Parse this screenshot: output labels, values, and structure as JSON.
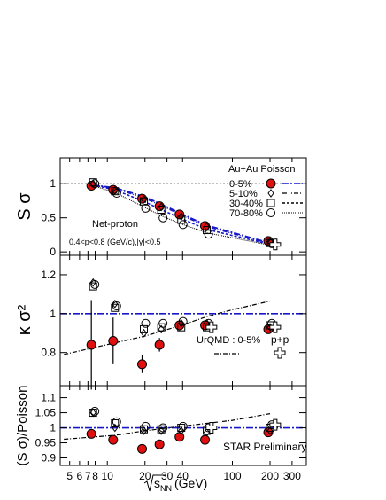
{
  "chart_data": {
    "type": "scatter",
    "x_scale": "log",
    "xlabel_root": "s",
    "xlabel_sub": "NN",
    "xlabel_unit": "(GeV)",
    "xlim": [
      4.2,
      390
    ],
    "x_ticks": [
      5,
      6,
      7,
      8,
      10,
      20,
      30,
      40,
      100,
      200,
      300
    ],
    "panels": [
      {
        "id": "s-sigma",
        "ylabel": "S σ",
        "ylim": [
          -0.05,
          1.38
        ],
        "y_ticks": [
          0,
          0.5,
          1
        ],
        "reference_line": 1,
        "legend_title": "Au+Au Poisson",
        "legend_entries": [
          "0-5%",
          "5-10%",
          "30-40%",
          "70-80%"
        ],
        "annotations": [
          "Net-proton",
          "0.4<p<0.8 (GeV/c),|y|<0.5"
        ],
        "poisson_curves": [
          {
            "name": "0-5%",
            "x": [
              7.7,
              11.5,
              19.6,
              27,
              39,
              62.4,
              200
            ],
            "y": [
              0.98,
              0.94,
              0.81,
              0.7,
              0.56,
              0.39,
              0.13
            ]
          },
          {
            "name": "5-10%",
            "x": [
              7.7,
              11.5,
              19.6,
              27,
              39,
              62.4,
              200
            ],
            "y": [
              0.98,
              0.93,
              0.79,
              0.68,
              0.54,
              0.37,
              0.12
            ]
          },
          {
            "name": "30-40%",
            "x": [
              7.7,
              11.5,
              19.6,
              27,
              39,
              62.4,
              200
            ],
            "y": [
              0.98,
              0.91,
              0.74,
              0.62,
              0.49,
              0.33,
              0.11
            ]
          },
          {
            "name": "70-80%",
            "x": [
              7.7,
              11.5,
              19.6,
              27,
              39,
              62.4,
              200
            ],
            "y": [
              0.97,
              0.87,
              0.66,
              0.53,
              0.41,
              0.28,
              0.1
            ]
          }
        ],
        "series": [
          {
            "name": "0-5%",
            "x": [
              7.7,
              11.5,
              19.6,
              27,
              39,
              62.4,
              200
            ],
            "y": [
              0.97,
              0.91,
              0.78,
              0.67,
              0.55,
              0.38,
              0.16
            ]
          },
          {
            "name": "5-10%",
            "x": [
              7.7,
              11.5,
              19.6,
              27,
              39,
              62.4,
              200
            ],
            "y": [
              1.0,
              0.9,
              0.77,
              0.66,
              0.52,
              0.37,
              0.15
            ]
          },
          {
            "name": "30-40%",
            "x": [
              7.7,
              11.5,
              19.6,
              27,
              39,
              62.4,
              200
            ],
            "y": [
              1.02,
              0.89,
              0.74,
              0.62,
              0.47,
              0.32,
              0.13
            ]
          },
          {
            "name": "70-80%",
            "x": [
              7.7,
              11.5,
              19.6,
              27,
              39,
              62.4,
              200
            ],
            "y": [
              1.0,
              0.86,
              0.64,
              0.5,
              0.4,
              0.26,
              0.12
            ]
          }
        ],
        "pp": {
          "name": "p+p",
          "x": [
            220
          ],
          "y": [
            0.11
          ]
        }
      },
      {
        "id": "kappa-sigma2",
        "ylabel": "κ σ²",
        "ylim": [
          0.63,
          1.3
        ],
        "y_ticks": [
          0.8,
          1,
          1.2
        ],
        "reference_line": 1,
        "annotations": [
          "UrQMD : 0-5%",
          "p+p"
        ],
        "urqmd": {
          "name": "UrQMD : 0-5%",
          "x": [
            4.5,
            11.5,
            20,
            39,
            62.4,
            100,
            200
          ],
          "y": [
            0.79,
            0.85,
            0.885,
            0.94,
            0.985,
            1.02,
            1.065
          ]
        },
        "series": [
          {
            "name": "0-5%",
            "x": [
              7.7,
              11.5,
              19.6,
              27,
              39,
              62.4,
              200
            ],
            "y": [
              0.84,
              0.86,
              0.74,
              0.84,
              0.94,
              0.94,
              0.92
            ],
            "err": [
              0.23,
              0.12,
              0.045,
              0.035,
              0.025,
              0.025,
              0.02
            ]
          },
          {
            "name": "5-10%",
            "x": [
              7.7,
              11.5,
              19.6,
              27,
              39,
              62.4,
              200
            ],
            "y": [
              1.16,
              1.05,
              0.9,
              0.92,
              0.95,
              0.95,
              0.93
            ]
          },
          {
            "name": "30-40%",
            "x": [
              7.7,
              11.5,
              19.6,
              27,
              39,
              62.4,
              200
            ],
            "y": [
              1.14,
              1.03,
              0.92,
              0.93,
              0.93,
              0.93,
              0.94
            ]
          },
          {
            "name": "70-80%",
            "x": [
              7.7,
              11.5,
              19.6,
              27,
              39,
              62.4,
              200
            ],
            "y": [
              1.15,
              1.04,
              0.95,
              0.95,
              0.96,
              0.95,
              0.95
            ]
          }
        ],
        "pp": {
          "name": "p+p",
          "x": [
            68,
            220
          ],
          "y": [
            0.93,
            0.93
          ]
        }
      },
      {
        "id": "ratio",
        "ylabel": "(S σ)/Poisson",
        "ylim": [
          0.875,
          1.14
        ],
        "y_ticks": [
          0.9,
          0.95,
          1,
          1.05,
          1.1
        ],
        "reference_line": 1,
        "annotations": [
          "STAR Preliminary"
        ],
        "urqmd": {
          "name": "UrQMD : 0-5%",
          "x": [
            4.5,
            11.5,
            20,
            39,
            62.4,
            100,
            200
          ],
          "y": [
            0.962,
            0.975,
            0.99,
            1.005,
            1.015,
            1.025,
            1.047
          ]
        },
        "series": [
          {
            "name": "0-5%",
            "x": [
              7.7,
              11.5,
              19.6,
              27,
              39,
              62.4,
              200
            ],
            "y": [
              0.98,
              0.96,
              0.93,
              0.945,
              0.97,
              0.96,
              0.985
            ]
          },
          {
            "name": "5-10%",
            "x": [
              7.7,
              11.5,
              19.6,
              27,
              39,
              62.4,
              200
            ],
            "y": [
              1.05,
              1.0,
              0.99,
              0.99,
              0.99,
              0.985,
              0.99
            ]
          },
          {
            "name": "30-40%",
            "x": [
              7.7,
              11.5,
              19.6,
              27,
              39,
              62.4,
              200
            ],
            "y": [
              1.05,
              1.015,
              0.995,
              0.995,
              1.0,
              0.99,
              1.0
            ]
          },
          {
            "name": "70-80%",
            "x": [
              7.7,
              11.5,
              19.6,
              27,
              39,
              62.4,
              200
            ],
            "y": [
              1.055,
              1.02,
              1.005,
              1.0,
              1.005,
              1.0,
              1.01
            ]
          }
        ],
        "pp": {
          "name": "p+p",
          "x": [
            68,
            220
          ],
          "y": [
            1.0,
            1.01
          ]
        }
      }
    ]
  },
  "colors": {
    "red_marker": "#e01010",
    "blue_line": "#1818c8",
    "axis": "#000000"
  }
}
